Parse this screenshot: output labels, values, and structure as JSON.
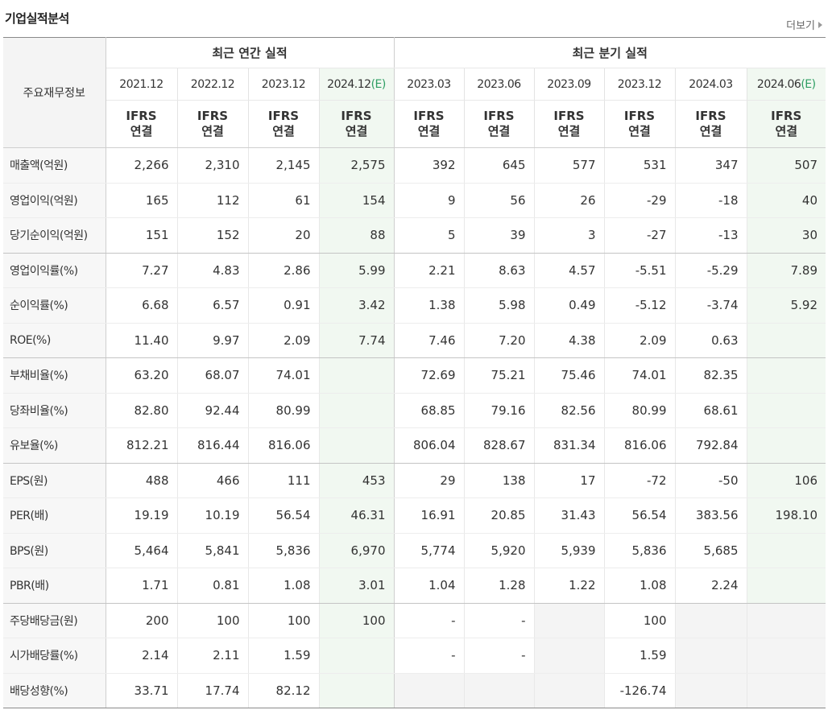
{
  "section": {
    "title": "기업실적분석",
    "more_label": "더보기"
  },
  "header": {
    "item_label": "주요재무정보",
    "annual_label": "최근 연간 실적",
    "quarter_label": "최근 분기 실적",
    "annual_dates": [
      "2021.12",
      "2022.12",
      "2023.12",
      "2024.12"
    ],
    "annual_est_suffix": "(E)",
    "quarter_dates": [
      "2023.03",
      "2023.06",
      "2023.09",
      "2023.12",
      "2024.03",
      "2024.06"
    ],
    "quarter_est_suffix": "(E)",
    "ifrs_line1": "IFRS",
    "ifrs_line2": "연결"
  },
  "rows": [
    {
      "label": "매출액(억원)",
      "values": [
        "2,266",
        "2,310",
        "2,145",
        "2,575",
        "392",
        "645",
        "577",
        "531",
        "347",
        "507"
      ]
    },
    {
      "label": "영업이익(억원)",
      "values": [
        "165",
        "112",
        "61",
        "154",
        "9",
        "56",
        "26",
        "-29",
        "-18",
        "40"
      ]
    },
    {
      "label": "당기순이익(억원)",
      "values": [
        "151",
        "152",
        "20",
        "88",
        "5",
        "39",
        "3",
        "-27",
        "-13",
        "30"
      ]
    },
    {
      "label": "영업이익률(%)",
      "values": [
        "7.27",
        "4.83",
        "2.86",
        "5.99",
        "2.21",
        "8.63",
        "4.57",
        "-5.51",
        "-5.29",
        "7.89"
      ]
    },
    {
      "label": "순이익률(%)",
      "values": [
        "6.68",
        "6.57",
        "0.91",
        "3.42",
        "1.38",
        "5.98",
        "0.49",
        "-5.12",
        "-3.74",
        "5.92"
      ]
    },
    {
      "label": "ROE(%)",
      "values": [
        "11.40",
        "9.97",
        "2.09",
        "7.74",
        "7.46",
        "7.20",
        "4.38",
        "2.09",
        "0.63",
        ""
      ]
    },
    {
      "label": "부채비율(%)",
      "values": [
        "63.20",
        "68.07",
        "74.01",
        "",
        "72.69",
        "75.21",
        "75.46",
        "74.01",
        "82.35",
        ""
      ]
    },
    {
      "label": "당좌비율(%)",
      "values": [
        "82.80",
        "92.44",
        "80.99",
        "",
        "68.85",
        "79.16",
        "82.56",
        "80.99",
        "68.61",
        ""
      ]
    },
    {
      "label": "유보율(%)",
      "values": [
        "812.21",
        "816.44",
        "816.06",
        "",
        "806.04",
        "828.67",
        "831.34",
        "816.06",
        "792.84",
        ""
      ]
    },
    {
      "label": "EPS(원)",
      "values": [
        "488",
        "466",
        "111",
        "453",
        "29",
        "138",
        "17",
        "-72",
        "-50",
        "106"
      ]
    },
    {
      "label": "PER(배)",
      "values": [
        "19.19",
        "10.19",
        "56.54",
        "46.31",
        "16.91",
        "20.85",
        "31.43",
        "56.54",
        "383.56",
        "198.10"
      ]
    },
    {
      "label": "BPS(원)",
      "values": [
        "5,464",
        "5,841",
        "5,836",
        "6,970",
        "5,774",
        "5,920",
        "5,939",
        "5,836",
        "5,685",
        ""
      ]
    },
    {
      "label": "PBR(배)",
      "values": [
        "1.71",
        "0.81",
        "1.08",
        "3.01",
        "1.04",
        "1.28",
        "1.22",
        "1.08",
        "2.24",
        ""
      ]
    },
    {
      "label": "주당배당금(원)",
      "values": [
        "200",
        "100",
        "100",
        "100",
        "-",
        "-",
        "",
        "100",
        "",
        ""
      ]
    },
    {
      "label": "시가배당률(%)",
      "values": [
        "2.14",
        "2.11",
        "1.59",
        "",
        "-",
        "-",
        "",
        "1.59",
        "",
        ""
      ]
    },
    {
      "label": "배당성향(%)",
      "values": [
        "33.71",
        "17.74",
        "82.12",
        "",
        "",
        "",
        "",
        "-126.74",
        "",
        ""
      ]
    }
  ],
  "colors": {
    "negative": "#e0251b",
    "ifrs": "#f36b2a",
    "estimate_bg": "#f1f8f1",
    "estimate_suffix": "#2e9e63"
  }
}
